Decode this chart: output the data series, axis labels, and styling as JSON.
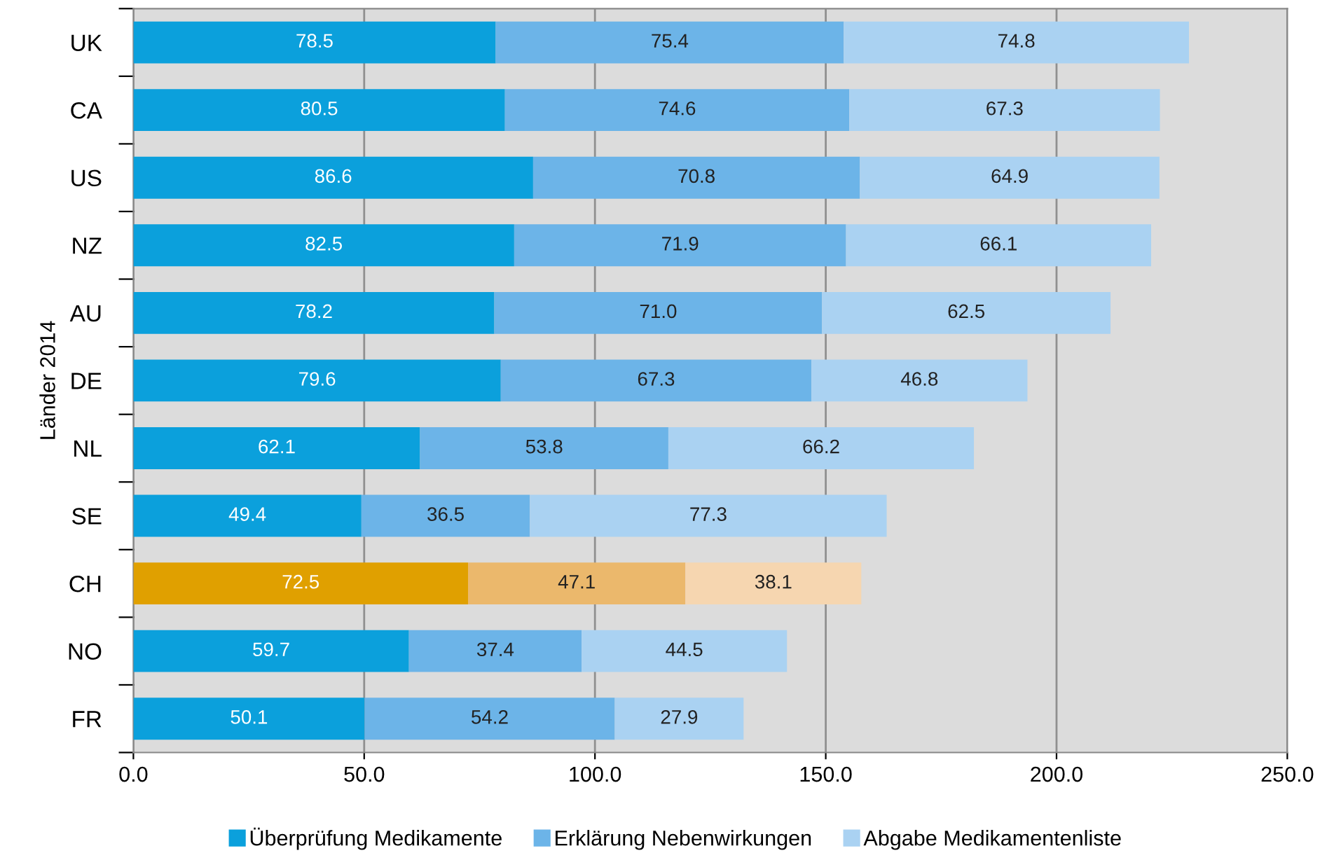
{
  "chart_data": {
    "type": "bar",
    "orientation": "horizontal",
    "stacked": true,
    "ylabel": "Länder 2014",
    "categories": [
      "UK",
      "CA",
      "US",
      "NZ",
      "AU",
      "DE",
      "NL",
      "SE",
      "CH",
      "NO",
      "FR"
    ],
    "series": [
      {
        "name": "Überprüfung Medikamente",
        "color": "#0ba0dc",
        "colors": [
          "#0ba0dc",
          "#0ba0dc",
          "#0ba0dc",
          "#0ba0dc",
          "#0ba0dc",
          "#0ba0dc",
          "#0ba0dc",
          "#0ba0dc",
          "#e0a000",
          "#0ba0dc",
          "#0ba0dc"
        ],
        "values": [
          78.5,
          80.5,
          86.6,
          82.5,
          78.2,
          79.6,
          62.1,
          49.4,
          72.5,
          59.7,
          50.1
        ],
        "value_labels": [
          "78.5",
          "80.5",
          "86.6",
          "82.5",
          "78.2",
          "79.6",
          "62.1",
          "49.4",
          "72.5",
          "59.7",
          "50.1"
        ]
      },
      {
        "name": "Erklärung Nebenwirkungen",
        "color": "#6cb4e8",
        "colors": [
          "#6cb4e8",
          "#6cb4e8",
          "#6cb4e8",
          "#6cb4e8",
          "#6cb4e8",
          "#6cb4e8",
          "#6cb4e8",
          "#6cb4e8",
          "#ebb86c",
          "#6cb4e8",
          "#6cb4e8"
        ],
        "values": [
          75.4,
          74.6,
          70.8,
          71.9,
          71.0,
          67.3,
          53.8,
          36.5,
          47.1,
          37.4,
          54.2
        ],
        "value_labels": [
          "75.4",
          "74.6",
          "70.8",
          "71.9",
          "71.0",
          "67.3",
          "53.8",
          "36.5",
          "47.1",
          "37.4",
          "54.2"
        ]
      },
      {
        "name": "Abgabe Medikamentenliste",
        "color": "#aad2f2",
        "colors": [
          "#aad2f2",
          "#aad2f2",
          "#aad2f2",
          "#aad2f2",
          "#aad2f2",
          "#aad2f2",
          "#aad2f2",
          "#aad2f2",
          "#f6d6b0",
          "#aad2f2",
          "#aad2f2"
        ],
        "values": [
          74.8,
          67.3,
          64.9,
          66.1,
          62.5,
          46.8,
          66.2,
          77.3,
          38.1,
          44.5,
          27.9
        ],
        "value_labels": [
          "74.8",
          "67.3",
          "64.9",
          "66.1",
          "62.5",
          "46.8",
          "66.2",
          "77.3",
          "38.1",
          "44.5",
          "27.9"
        ]
      }
    ],
    "xlim": [
      0,
      250
    ],
    "xticks": [
      {
        "value": 0,
        "label": "0.0"
      },
      {
        "value": 50,
        "label": "50.0"
      },
      {
        "value": 100,
        "label": "100.0"
      },
      {
        "value": 150,
        "label": "150.0"
      },
      {
        "value": 200,
        "label": "200.0"
      },
      {
        "value": 250,
        "label": "250.0"
      }
    ],
    "grid": "x",
    "legend": "bottom"
  }
}
